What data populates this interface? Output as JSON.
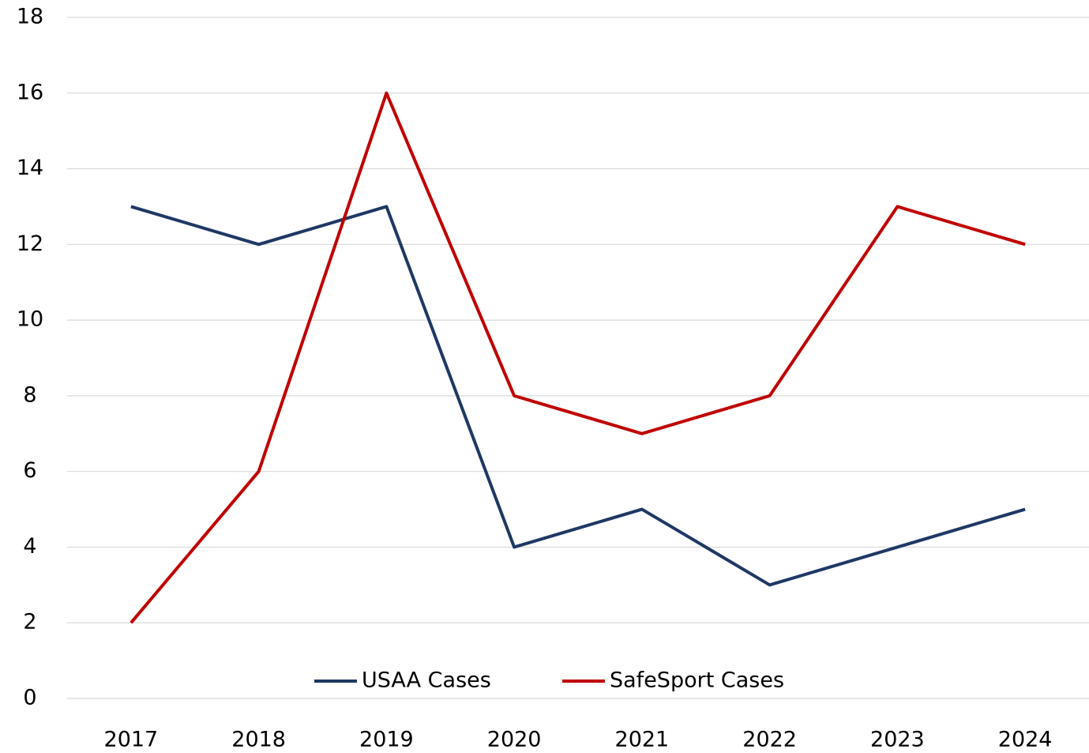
{
  "chart_data": {
    "type": "line",
    "categories": [
      "2017",
      "2018",
      "2019",
      "2020",
      "2021",
      "2022",
      "2023",
      "2024"
    ],
    "series": [
      {
        "name": "USAA Cases",
        "color": "#1f3864",
        "values": [
          13,
          12,
          13,
          4,
          5,
          3,
          4,
          5
        ]
      },
      {
        "name": "SafeSport Cases",
        "color": "#c00000",
        "values": [
          2,
          6,
          16,
          8,
          7,
          8,
          13,
          12
        ]
      }
    ],
    "ylim": [
      0,
      18
    ],
    "yticks": [
      0,
      2,
      4,
      6,
      8,
      10,
      12,
      14,
      16,
      18
    ],
    "grid": true,
    "legend": "bottom"
  }
}
